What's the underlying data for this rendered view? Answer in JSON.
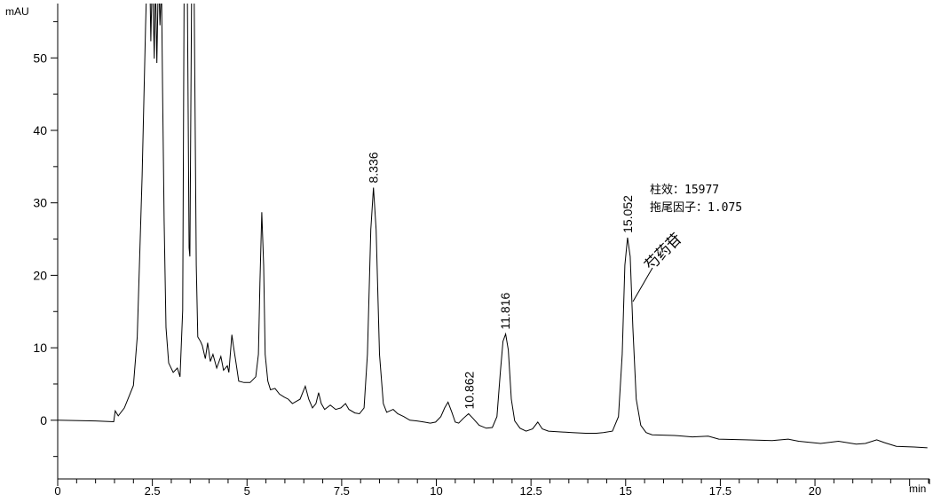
{
  "chart_data": {
    "type": "line",
    "title": "",
    "xlabel": "min",
    "ylabel": "mAU",
    "xlim": [
      0,
      23.0
    ],
    "ylim": [
      -8.1,
      57.5
    ],
    "x_ticks": [
      0,
      2.5,
      5,
      7.5,
      10,
      12.5,
      15,
      17.5,
      20
    ],
    "x_tick_labels": [
      "0",
      "2.5",
      "5",
      "7.5",
      "10",
      "12.5",
      "15",
      "17.5",
      "20"
    ],
    "y_ticks": [
      0,
      10,
      20,
      30,
      40,
      50
    ],
    "y_tick_labels": [
      "0",
      "10",
      "20",
      "30",
      "40",
      "50"
    ],
    "grid": false,
    "line_color": "#000000",
    "series": [
      {
        "points": [
          [
            0,
            0
          ],
          [
            1.0,
            -0.1
          ],
          [
            1.48,
            -0.2
          ],
          [
            1.52,
            1.3
          ],
          [
            1.6,
            0.6
          ],
          [
            1.76,
            1.7
          ],
          [
            2.0,
            4.8
          ],
          [
            2.1,
            11.5
          ],
          [
            2.23,
            33.7
          ],
          [
            2.32,
            54.5
          ],
          [
            2.36,
            62
          ],
          [
            2.4,
            58
          ],
          [
            2.43,
            62
          ],
          [
            2.46,
            52.3
          ],
          [
            2.5,
            62
          ],
          [
            2.55,
            49.9
          ],
          [
            2.58,
            62
          ],
          [
            2.62,
            49.3
          ],
          [
            2.66,
            62
          ],
          [
            2.7,
            54.5
          ],
          [
            2.74,
            60
          ],
          [
            2.77,
            46
          ],
          [
            2.81,
            27.5
          ],
          [
            2.86,
            12.8
          ],
          [
            2.93,
            7.9
          ],
          [
            3.05,
            6.6
          ],
          [
            3.16,
            7.2
          ],
          [
            3.23,
            6.0
          ],
          [
            3.3,
            15.2
          ],
          [
            3.34,
            62
          ],
          [
            3.42,
            62
          ],
          [
            3.47,
            23.8
          ],
          [
            3.49,
            22.6
          ],
          [
            3.54,
            62
          ],
          [
            3.6,
            62
          ],
          [
            3.66,
            21.4
          ],
          [
            3.7,
            11.5
          ],
          [
            3.77,
            10.9
          ],
          [
            3.82,
            10.3
          ],
          [
            3.9,
            8.5
          ],
          [
            3.96,
            10.7
          ],
          [
            4.03,
            8.1
          ],
          [
            4.1,
            9.1
          ],
          [
            4.2,
            7.2
          ],
          [
            4.31,
            8.8
          ],
          [
            4.38,
            6.9
          ],
          [
            4.48,
            7.5
          ],
          [
            4.52,
            6.6
          ],
          [
            4.6,
            11.8
          ],
          [
            4.64,
            10.3
          ],
          [
            4.71,
            7.9
          ],
          [
            4.78,
            5.4
          ],
          [
            4.92,
            5.2
          ],
          [
            5.08,
            5.2
          ],
          [
            5.23,
            6.0
          ],
          [
            5.3,
            9.1
          ],
          [
            5.34,
            18.9
          ],
          [
            5.39,
            28.7
          ],
          [
            5.44,
            21.4
          ],
          [
            5.48,
            9.1
          ],
          [
            5.55,
            5.4
          ],
          [
            5.62,
            4.2
          ],
          [
            5.74,
            4.4
          ],
          [
            5.86,
            3.6
          ],
          [
            5.98,
            3.2
          ],
          [
            6.09,
            2.9
          ],
          [
            6.2,
            2.3
          ],
          [
            6.4,
            2.9
          ],
          [
            6.54,
            4.7
          ],
          [
            6.63,
            2.9
          ],
          [
            6.73,
            1.7
          ],
          [
            6.82,
            2.3
          ],
          [
            6.89,
            3.8
          ],
          [
            6.96,
            2.3
          ],
          [
            7.05,
            1.5
          ],
          [
            7.2,
            2.1
          ],
          [
            7.34,
            1.5
          ],
          [
            7.48,
            1.7
          ],
          [
            7.6,
            2.3
          ],
          [
            7.69,
            1.5
          ],
          [
            7.85,
            1.0
          ],
          [
            7.97,
            0.9
          ],
          [
            8.09,
            1.7
          ],
          [
            8.18,
            9.1
          ],
          [
            8.27,
            26.3
          ],
          [
            8.34,
            32.1
          ],
          [
            8.41,
            26.3
          ],
          [
            8.5,
            9.1
          ],
          [
            8.6,
            2.3
          ],
          [
            8.69,
            1.1
          ],
          [
            8.86,
            1.5
          ],
          [
            8.98,
            0.9
          ],
          [
            9.14,
            0.5
          ],
          [
            9.3,
            0
          ],
          [
            9.49,
            -0.1
          ],
          [
            9.68,
            -0.25
          ],
          [
            9.84,
            -0.4
          ],
          [
            9.98,
            -0.25
          ],
          [
            10.12,
            0.5
          ],
          [
            10.22,
            1.7
          ],
          [
            10.31,
            2.5
          ],
          [
            10.41,
            1.1
          ],
          [
            10.5,
            -0.25
          ],
          [
            10.59,
            -0.4
          ],
          [
            10.71,
            0.25
          ],
          [
            10.85,
            0.9
          ],
          [
            10.97,
            0.25
          ],
          [
            11.13,
            -0.7
          ],
          [
            11.32,
            -1.1
          ],
          [
            11.48,
            -1.0
          ],
          [
            11.6,
            0.5
          ],
          [
            11.69,
            6.6
          ],
          [
            11.76,
            10.9
          ],
          [
            11.83,
            11.9
          ],
          [
            11.9,
            9.7
          ],
          [
            11.98,
            2.9
          ],
          [
            12.07,
            -0.1
          ],
          [
            12.21,
            -1.1
          ],
          [
            12.37,
            -1.5
          ],
          [
            12.54,
            -1.2
          ],
          [
            12.68,
            -0.25
          ],
          [
            12.8,
            -1.2
          ],
          [
            12.96,
            -1.5
          ],
          [
            13.24,
            -1.6
          ],
          [
            13.59,
            -1.7
          ],
          [
            13.94,
            -1.8
          ],
          [
            14.23,
            -1.8
          ],
          [
            14.41,
            -1.7
          ],
          [
            14.65,
            -1.5
          ],
          [
            14.81,
            0.5
          ],
          [
            14.91,
            9.1
          ],
          [
            14.98,
            21.4
          ],
          [
            15.05,
            25.2
          ],
          [
            15.12,
            22.6
          ],
          [
            15.19,
            12.8
          ],
          [
            15.28,
            2.9
          ],
          [
            15.4,
            -0.7
          ],
          [
            15.54,
            -1.7
          ],
          [
            15.7,
            -2.0
          ],
          [
            16.29,
            -2.1
          ],
          [
            16.76,
            -2.3
          ],
          [
            17.18,
            -2.2
          ],
          [
            17.46,
            -2.6
          ],
          [
            18.16,
            -2.7
          ],
          [
            18.87,
            -2.8
          ],
          [
            19.29,
            -2.6
          ],
          [
            19.57,
            -2.9
          ],
          [
            20.15,
            -3.2
          ],
          [
            20.62,
            -2.9
          ],
          [
            21.09,
            -3.3
          ],
          [
            21.33,
            -3.2
          ],
          [
            21.63,
            -2.7
          ],
          [
            21.84,
            -3.1
          ],
          [
            22.15,
            -3.6
          ],
          [
            22.62,
            -3.7
          ],
          [
            22.97,
            -3.8
          ]
        ]
      }
    ],
    "peak_labels": [
      {
        "x": 8.336,
        "y": 32.1,
        "label": "8.336"
      },
      {
        "x": 10.862,
        "y": 0.9,
        "label": "10.862"
      },
      {
        "x": 11.816,
        "y": 11.9,
        "label": "11.816"
      },
      {
        "x": 15.052,
        "y": 25.2,
        "label": "15.052"
      }
    ],
    "annotations": {
      "compound": "芍药苷",
      "plate_count": "柱效：15977",
      "tailing_factor": "拖尾因子：1.075"
    }
  }
}
